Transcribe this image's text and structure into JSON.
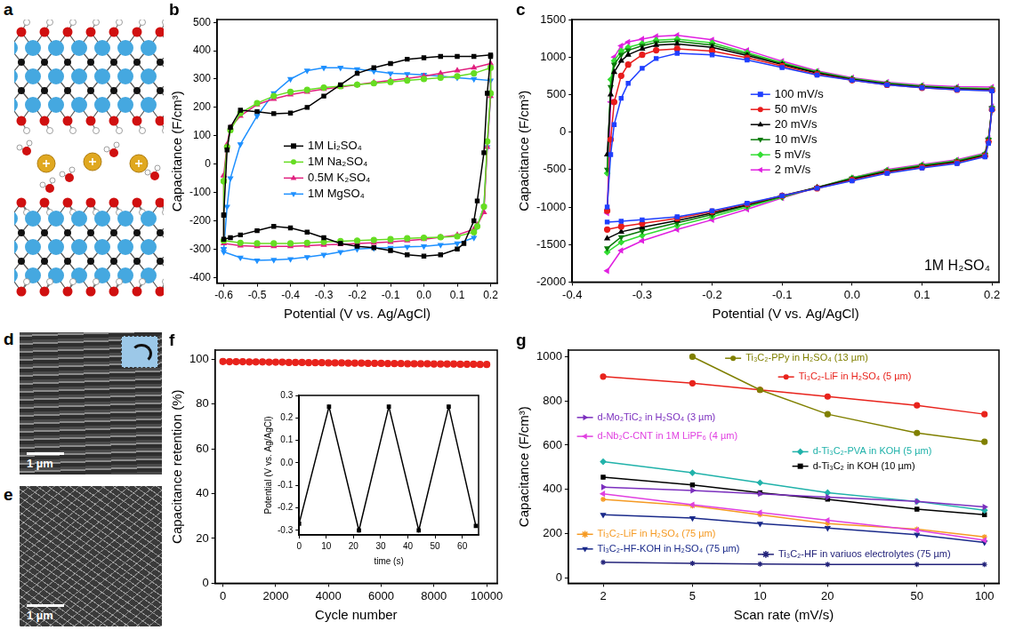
{
  "panels": {
    "a": {
      "label": "a"
    },
    "d": {
      "label": "d",
      "scale_bar": "1 µm"
    },
    "e": {
      "label": "e",
      "scale_bar": "1 µm"
    }
  },
  "chart_data": [
    {
      "panel": "b",
      "type": "line",
      "xlabel": "Potential (V vs. Ag/AgCl)",
      "ylabel": "Capacitance (F/cm³)",
      "xlim": [
        -0.62,
        0.22
      ],
      "xticks": [
        -0.6,
        -0.5,
        -0.4,
        -0.3,
        -0.2,
        -0.1,
        {
          "value": 0,
          "label": "0.0"
        },
        0.1,
        0.2
      ],
      "ylim": [
        -420,
        510
      ],
      "yticks": [
        -400,
        -300,
        -200,
        -100,
        0,
        100,
        200,
        300,
        400,
        500
      ],
      "grid": false,
      "legend": "center",
      "series": [
        {
          "name": "1M Li₂SO₄",
          "color": "#000000",
          "marker": "square",
          "x": [
            -0.6,
            -0.59,
            -0.58,
            -0.55,
            -0.5,
            -0.45,
            -0.4,
            -0.35,
            -0.3,
            -0.25,
            -0.2,
            -0.15,
            -0.1,
            -0.05,
            0,
            0.05,
            0.1,
            0.15,
            0.2,
            0.2,
            0.19,
            0.18,
            0.16,
            0.15,
            0.12,
            0.1,
            0.05,
            0,
            -0.05,
            -0.1,
            -0.15,
            -0.2,
            -0.25,
            -0.3,
            -0.35,
            -0.4,
            -0.45,
            -0.5,
            -0.55,
            -0.58,
            -0.6,
            -0.6
          ],
          "values": [
            -180,
            50,
            130,
            190,
            185,
            178,
            180,
            200,
            240,
            280,
            320,
            340,
            355,
            370,
            375,
            380,
            380,
            380,
            385,
            380,
            250,
            40,
            -130,
            -200,
            -280,
            -300,
            -320,
            -325,
            -320,
            -305,
            -295,
            -290,
            -280,
            -260,
            -240,
            -225,
            -220,
            -235,
            -250,
            -260,
            -265,
            -180
          ]
        },
        {
          "name": "1M Na₂SO₄",
          "color": "#66dd22",
          "marker": "circle",
          "x": [
            -0.6,
            -0.59,
            -0.58,
            -0.55,
            -0.5,
            -0.45,
            -0.4,
            -0.35,
            -0.3,
            -0.25,
            -0.2,
            -0.15,
            -0.1,
            -0.05,
            0,
            0.05,
            0.1,
            0.15,
            0.2,
            0.2,
            0.19,
            0.18,
            0.16,
            0.15,
            0.1,
            0.05,
            0,
            -0.05,
            -0.1,
            -0.15,
            -0.2,
            -0.25,
            -0.3,
            -0.35,
            -0.4,
            -0.45,
            -0.5,
            -0.55,
            -0.6,
            -0.6
          ],
          "values": [
            -60,
            60,
            120,
            180,
            215,
            240,
            255,
            262,
            270,
            275,
            280,
            285,
            290,
            295,
            300,
            305,
            310,
            320,
            340,
            250,
            80,
            -150,
            -220,
            -240,
            -255,
            -258,
            -260,
            -262,
            -265,
            -268,
            -270,
            -272,
            -275,
            -278,
            -280,
            -280,
            -280,
            -278,
            -270,
            -60
          ]
        },
        {
          "name": "0.5M K₂SO₄",
          "color": "#e0207f",
          "marker": "triangle",
          "x": [
            -0.6,
            -0.59,
            -0.58,
            -0.55,
            -0.5,
            -0.45,
            -0.4,
            -0.35,
            -0.3,
            -0.25,
            -0.2,
            -0.15,
            -0.1,
            -0.05,
            0,
            0.05,
            0.1,
            0.15,
            0.2,
            0.2,
            0.19,
            0.18,
            0.16,
            0.15,
            0.1,
            0.05,
            0,
            -0.05,
            -0.1,
            -0.15,
            -0.2,
            -0.25,
            -0.3,
            -0.35,
            -0.4,
            -0.45,
            -0.5,
            -0.55,
            -0.6,
            -0.6
          ],
          "values": [
            -40,
            70,
            130,
            170,
            210,
            230,
            245,
            255,
            265,
            272,
            280,
            288,
            295,
            302,
            310,
            320,
            330,
            340,
            355,
            240,
            60,
            -170,
            -215,
            -230,
            -250,
            -258,
            -265,
            -270,
            -275,
            -278,
            -280,
            -283,
            -285,
            -288,
            -290,
            -290,
            -290,
            -288,
            -280,
            -40
          ]
        },
        {
          "name": "1M MgSO₄",
          "color": "#1e90ff",
          "marker": "triangle-down",
          "x": [
            -0.6,
            -0.59,
            -0.58,
            -0.55,
            -0.5,
            -0.45,
            -0.4,
            -0.35,
            -0.3,
            -0.25,
            -0.2,
            -0.15,
            -0.1,
            -0.05,
            0,
            0.05,
            0.1,
            0.15,
            0.2,
            0.2,
            0.19,
            0.18,
            0.16,
            0.15,
            0.1,
            0.05,
            0,
            -0.05,
            -0.1,
            -0.15,
            -0.2,
            -0.25,
            -0.3,
            -0.35,
            -0.4,
            -0.45,
            -0.5,
            -0.55,
            -0.6,
            -0.6
          ],
          "values": [
            -300,
            -150,
            -50,
            70,
            170,
            250,
            300,
            330,
            340,
            340,
            335,
            328,
            320,
            318,
            315,
            310,
            305,
            300,
            295,
            240,
            60,
            -150,
            -220,
            -260,
            -280,
            -285,
            -290,
            -292,
            -295,
            -297,
            -300,
            -310,
            -320,
            -328,
            -335,
            -338,
            -340,
            -330,
            -310,
            -300
          ]
        }
      ]
    },
    {
      "panel": "c",
      "type": "line",
      "xlabel": "Potential (V vs. Ag/AgCl)",
      "ylabel": "Capacitance (F/cm³)",
      "annotation": "1M H₂SO₄",
      "xlim": [
        -0.4,
        0.21
      ],
      "xticks": [
        -0.4,
        -0.3,
        -0.2,
        -0.1,
        {
          "value": 0,
          "label": "0.0"
        },
        0.1,
        0.2
      ],
      "ylim": [
        -2000,
        1500
      ],
      "yticks": [
        -2000,
        -1500,
        -1000,
        -500,
        0,
        500,
        1000,
        1500
      ],
      "grid": false,
      "legend": "center",
      "x": [
        -0.35,
        -0.345,
        -0.34,
        -0.33,
        -0.32,
        -0.3,
        -0.28,
        -0.25,
        -0.2,
        -0.15,
        -0.1,
        -0.05,
        0,
        0.05,
        0.1,
        0.15,
        0.2,
        0.2,
        0.195,
        0.19,
        0.15,
        0.1,
        0.05,
        0,
        -0.05,
        -0.1,
        -0.15,
        -0.2,
        -0.25,
        -0.3,
        -0.33,
        -0.35
      ],
      "series": [
        {
          "name": "100 mV/s",
          "color": "#1f3fff",
          "marker": "square",
          "values": [
            -1000,
            -300,
            100,
            450,
            650,
            850,
            980,
            1050,
            1030,
            960,
            860,
            760,
            690,
            630,
            590,
            565,
            550,
            300,
            -150,
            -330,
            -420,
            -480,
            -550,
            -650,
            -750,
            -850,
            -950,
            -1050,
            -1130,
            -1170,
            -1190,
            -1200
          ]
        },
        {
          "name": "50 mV/s",
          "color": "#e81c1c",
          "marker": "circle",
          "values": [
            -1050,
            -100,
            400,
            750,
            900,
            1030,
            1090,
            1110,
            1080,
            990,
            880,
            770,
            690,
            630,
            590,
            565,
            555,
            300,
            -130,
            -320,
            -410,
            -470,
            -540,
            -640,
            -750,
            -850,
            -960,
            -1060,
            -1150,
            -1220,
            -1260,
            -1300
          ]
        },
        {
          "name": "20 mV/s",
          "color": "#000000",
          "marker": "triangle",
          "values": [
            -300,
            500,
            800,
            950,
            1030,
            1110,
            1160,
            1175,
            1130,
            1020,
            900,
            785,
            700,
            640,
            600,
            575,
            560,
            310,
            -110,
            -310,
            -400,
            -460,
            -530,
            -630,
            -740,
            -850,
            -970,
            -1080,
            -1180,
            -1270,
            -1330,
            -1420
          ]
        },
        {
          "name": "10 mV/s",
          "color": "#0a7a0a",
          "marker": "triangle-down",
          "values": [
            -500,
            600,
            900,
            1030,
            1090,
            1150,
            1195,
            1210,
            1160,
            1040,
            910,
            795,
            705,
            645,
            605,
            580,
            570,
            320,
            -100,
            -300,
            -390,
            -450,
            -520,
            -620,
            -740,
            -860,
            -980,
            -1100,
            -1210,
            -1320,
            -1400,
            -1550
          ]
        },
        {
          "name": "5 mV/s",
          "color": "#33dd33",
          "marker": "diamond",
          "values": [
            -550,
            700,
            950,
            1080,
            1130,
            1180,
            1225,
            1240,
            1190,
            1060,
            925,
            805,
            715,
            655,
            615,
            590,
            580,
            330,
            -90,
            -290,
            -380,
            -440,
            -510,
            -610,
            -740,
            -870,
            -1000,
            -1130,
            -1250,
            -1380,
            -1470,
            -1600
          ]
        },
        {
          "name": "2 mV/s",
          "color": "#e020e0",
          "marker": "triangle-left",
          "values": [
            -1080,
            400,
            1000,
            1150,
            1200,
            1240,
            1275,
            1290,
            1230,
            1090,
            945,
            815,
            725,
            665,
            625,
            605,
            600,
            340,
            -80,
            -280,
            -370,
            -430,
            -500,
            -610,
            -740,
            -880,
            -1030,
            -1170,
            -1300,
            -1450,
            -1580,
            -1850
          ]
        }
      ]
    },
    {
      "panel": "f",
      "type": "scatter",
      "xlabel": "Cycle number",
      "ylabel": "Capacitance retention (%)",
      "xlim": [
        -300,
        10400
      ],
      "xticks": [
        0,
        2000,
        4000,
        6000,
        8000,
        10000
      ],
      "ylim": [
        0,
        104
      ],
      "yticks": [
        0,
        20,
        40,
        60,
        80,
        100
      ],
      "grid": false,
      "x": [
        0,
        250,
        500,
        750,
        1000,
        1250,
        1500,
        1750,
        2000,
        2250,
        2500,
        2750,
        3000,
        3250,
        3500,
        3750,
        4000,
        4250,
        4500,
        4750,
        5000,
        5250,
        5500,
        5750,
        6000,
        6250,
        6500,
        6750,
        7000,
        7250,
        7500,
        7750,
        8000,
        8250,
        8500,
        8750,
        9000,
        9250,
        9500,
        9750,
        10000
      ],
      "series": [
        {
          "color": "#e8231c",
          "marker": "circle",
          "values": [
            98.9,
            98.8,
            98.8,
            98.8,
            98.7,
            98.7,
            98.7,
            98.6,
            98.6,
            98.6,
            98.5,
            98.5,
            98.5,
            98.4,
            98.4,
            98.4,
            98.3,
            98.3,
            98.3,
            98.2,
            98.2,
            98.2,
            98.1,
            98.1,
            98.1,
            98.0,
            98.0,
            98.0,
            97.9,
            97.9,
            97.9,
            97.9,
            97.8,
            97.8,
            97.8,
            97.8,
            97.7,
            97.7,
            97.7,
            97.6,
            97.6
          ]
        }
      ],
      "inset": {
        "type": "line",
        "xlabel": "time (s)",
        "ylabel": "Potential (V vs. Ag/AgCl)",
        "xlim": [
          0,
          66
        ],
        "xticks": [
          0,
          10,
          20,
          30,
          40,
          50,
          60
        ],
        "ylim": [
          -0.32,
          0.3
        ],
        "yticks": [
          -0.3,
          -0.2,
          -0.1,
          {
            "value": 0,
            "label": "0.0"
          },
          0.1,
          0.2,
          0.3
        ],
        "grid": false,
        "x": [
          0,
          11,
          22,
          33,
          44,
          55,
          65
        ],
        "series": [
          {
            "color": "#000000",
            "marker": "square",
            "values": [
              -0.27,
              0.25,
              -0.3,
              0.25,
              -0.3,
              0.25,
              -0.28
            ]
          }
        ]
      }
    },
    {
      "panel": "g",
      "type": "line",
      "log": "x",
      "xlabel": "Scan rate (mV/s)",
      "ylabel": "Capacitance (F/cm³)",
      "xlim": [
        1.4,
        116
      ],
      "xticks": [
        2,
        5,
        10,
        20,
        50,
        100
      ],
      "ylim": [
        -25,
        1030
      ],
      "yticks": [
        0,
        200,
        400,
        600,
        800,
        1000
      ],
      "grid": false,
      "legend": "inline",
      "x": [
        2,
        5,
        10,
        20,
        50,
        100
      ],
      "series": [
        {
          "name": "Ti₃C₂-PPy in H₂SO₄ (13 µm)",
          "color": "#808000",
          "marker": "circle",
          "values": [
            null,
            1000,
            850,
            740,
            655,
            615
          ]
        },
        {
          "name": "Ti₃C₂-LiF in H₂SO₄ (5 µm)",
          "color": "#e8231c",
          "marker": "circle",
          "values": [
            910,
            880,
            850,
            820,
            780,
            740
          ]
        },
        {
          "name": "d-Mo₂TiC₂ in H₂SO₄ (3 µm)",
          "color": "#7b2fbe",
          "marker": "triangle-right",
          "values": [
            410,
            395,
            380,
            365,
            345,
            320
          ]
        },
        {
          "name": "d-Nb₂C-CNT in 1M LiPF₆ (4 µm)",
          "color": "#e040e0",
          "marker": "triangle-left",
          "values": [
            380,
            330,
            295,
            260,
            215,
            170
          ]
        },
        {
          "name": "d-Ti₃C₂-PVA in KOH (5 µm)",
          "color": "#20b2aa",
          "marker": "diamond",
          "values": [
            525,
            475,
            430,
            385,
            345,
            305
          ]
        },
        {
          "name": "d-Ti₃C₂ in KOH (10 µm)",
          "color": "#000000",
          "marker": "square",
          "values": [
            455,
            420,
            385,
            355,
            310,
            285
          ]
        },
        {
          "name": "Ti₃C₂-LiF in H₂SO₄ (75 µm)",
          "color": "#f59a23",
          "marker": "star",
          "values": [
            355,
            325,
            285,
            245,
            220,
            185
          ]
        },
        {
          "name": "Ti₃C₂-HF-KOH in H₂SO₄ (75 µm)",
          "color": "#1a2a8a",
          "marker": "triangle-down",
          "values": [
            285,
            270,
            245,
            225,
            195,
            160
          ]
        },
        {
          "name": "Ti₃C₂-HF in variuos electrolytes (75 µm)",
          "color": "#23237a",
          "marker": "star",
          "values": [
            70,
            65,
            62,
            60,
            60,
            60
          ]
        }
      ]
    }
  ]
}
